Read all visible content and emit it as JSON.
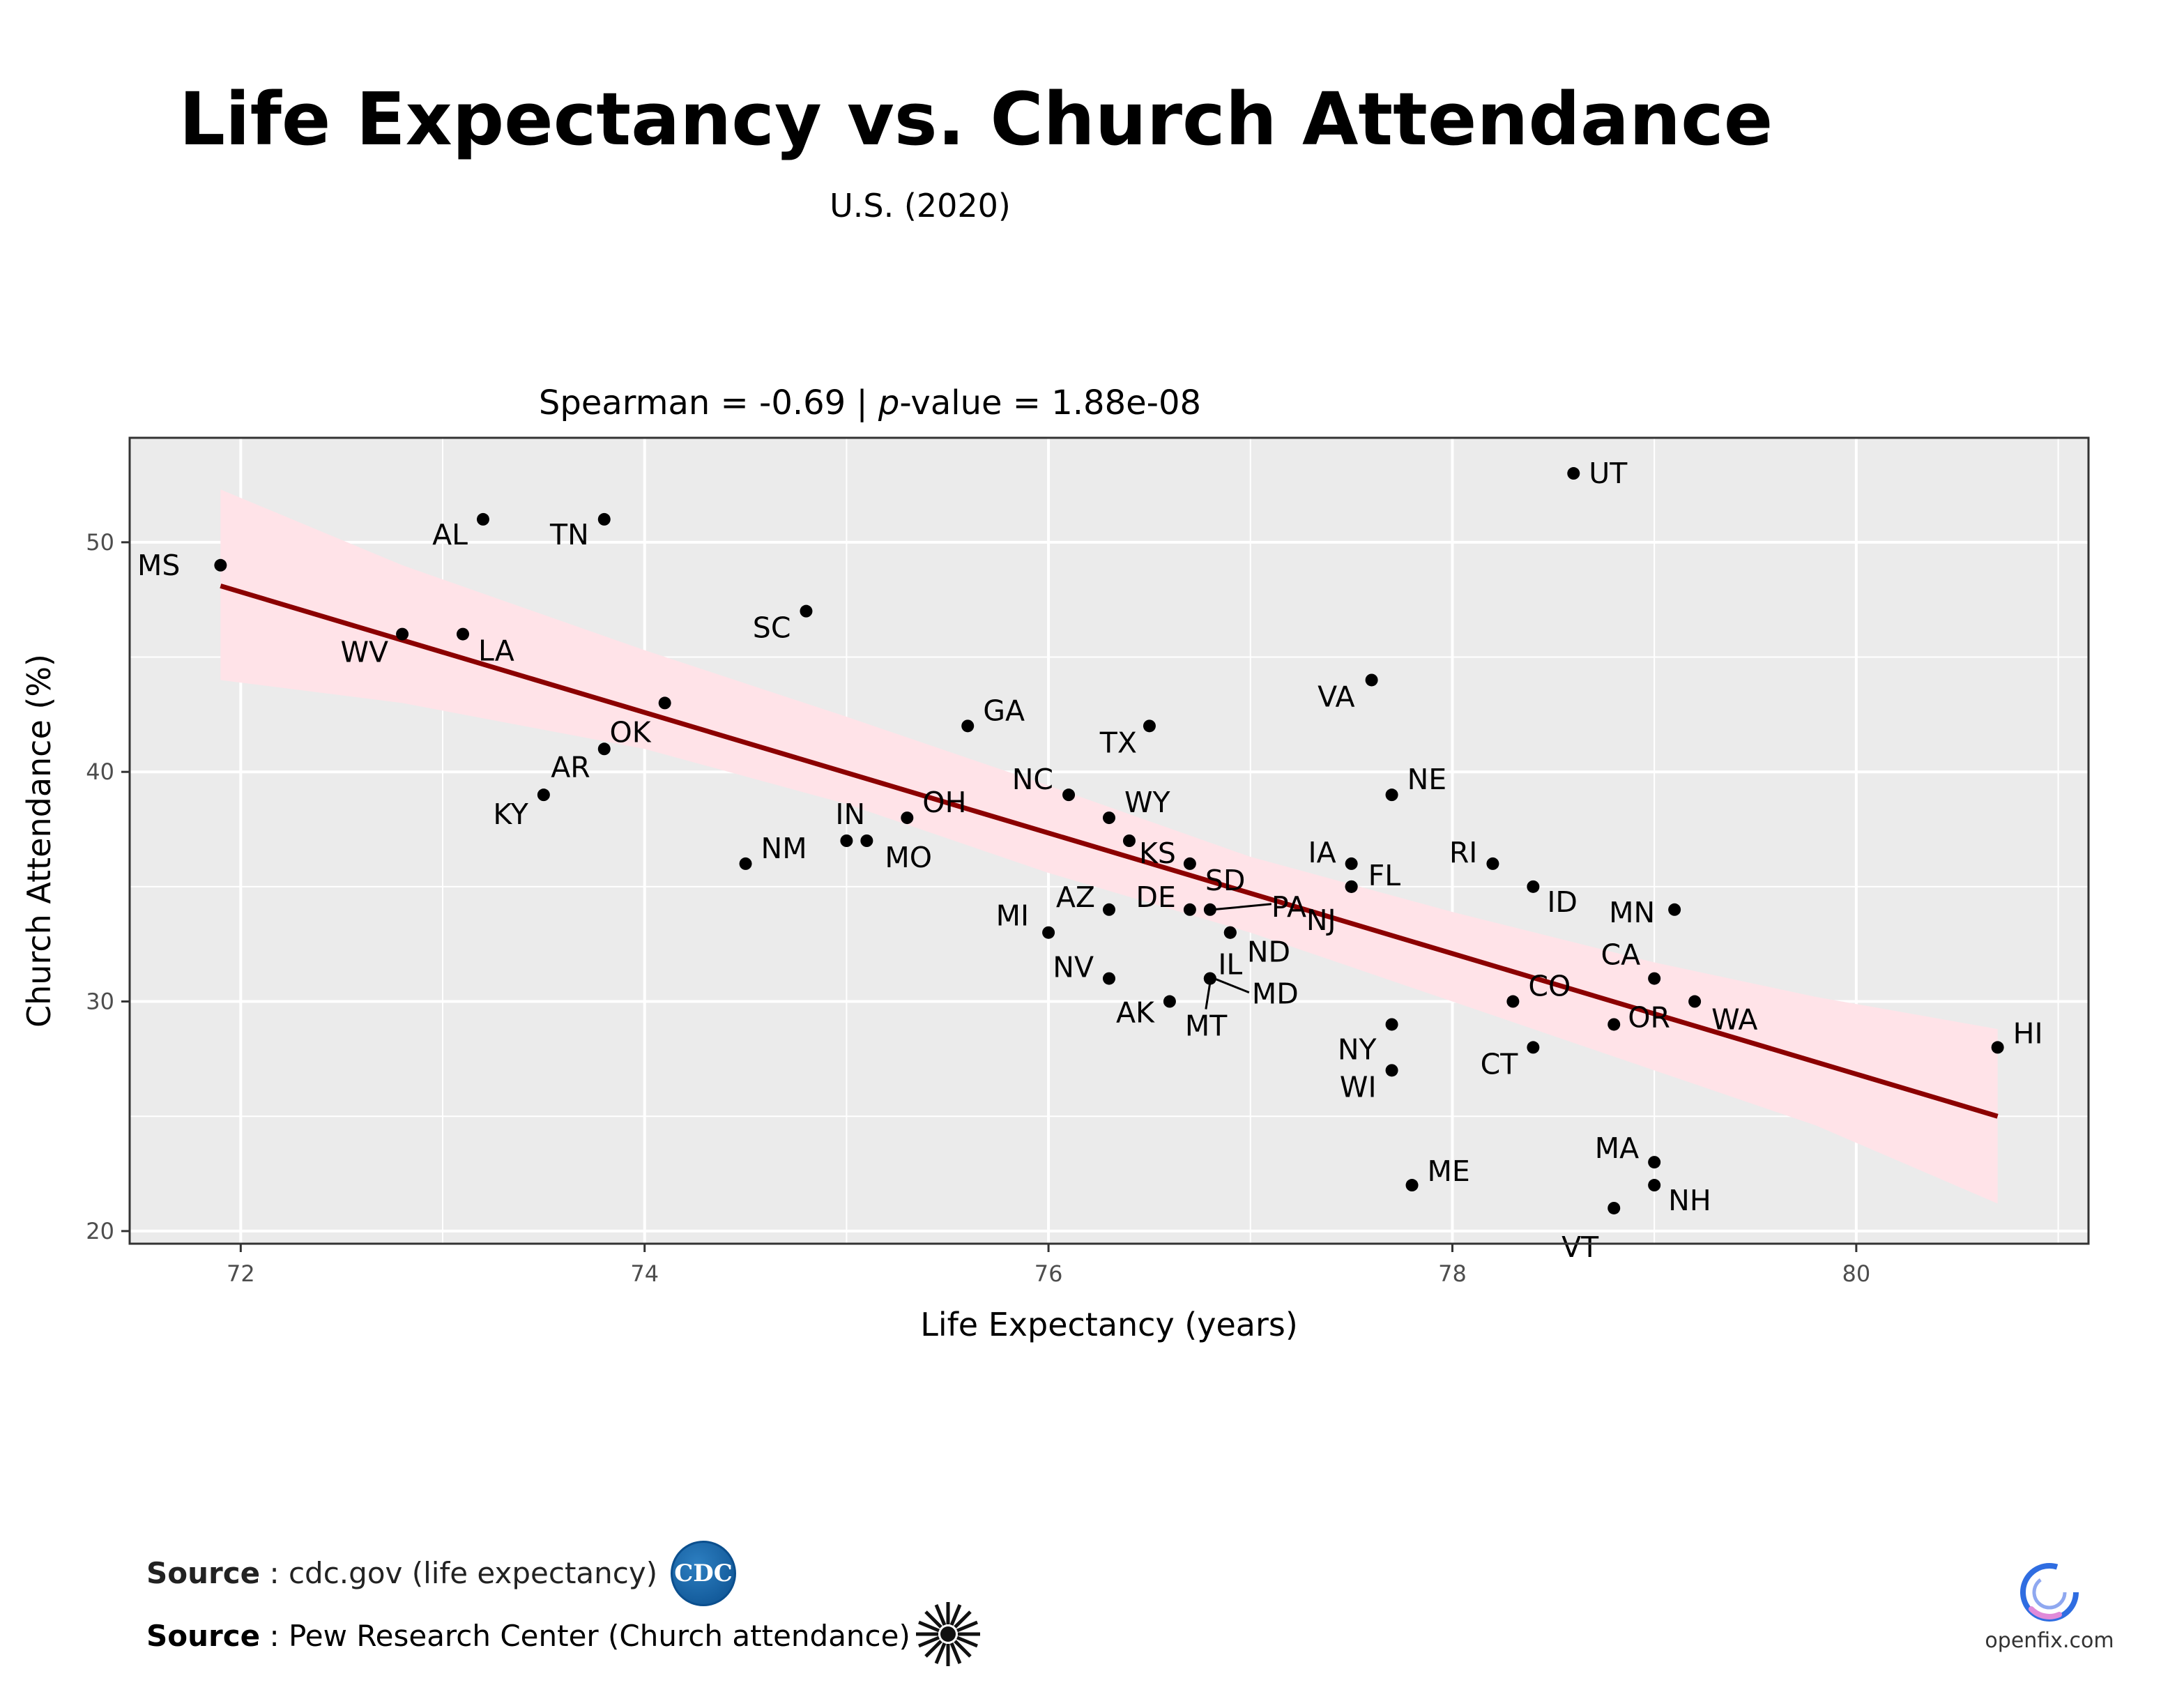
{
  "colors": {
    "panel": "#ebebeb",
    "grid": "#ffffff",
    "point": "#000000",
    "fit_line": "#8b0000",
    "confidence_band": "#ffe3e8",
    "cdc_blue": "#0b4f8e",
    "openfix_blue": "#2f6de1",
    "openfix_pink": "#e08ad9"
  },
  "sources": {
    "label": "Source",
    "cdc_text": " : cdc.gov (life expectancy)",
    "pew_text": " : Pew Research Center (Church attendance)",
    "cdc_logo_text": "CDC"
  },
  "branding": {
    "openfix_text": "openfix.com"
  },
  "chart_data": {
    "type": "scatter",
    "title": "Life Expectancy vs. Church Attendance",
    "subtitle": "U.S. (2020)",
    "stat": {
      "prefix": "Spearman = -0.69 | ",
      "p_symbol": "p",
      "suffix": "-value = 1.88e-08"
    },
    "xlabel": "Life Expectancy (years)",
    "ylabel": "Church Attendance (%)",
    "xlim": [
      71.45,
      81.15
    ],
    "ylim": [
      19.45,
      54.55
    ],
    "xticks": [
      72,
      74,
      76,
      78,
      80
    ],
    "yticks": [
      20,
      30,
      40,
      50
    ],
    "grid": true,
    "fit_line": {
      "x": [
        71.9,
        80.7
      ],
      "y": [
        48.1,
        25.0
      ]
    },
    "confidence_band": {
      "x": [
        71.9,
        72.8,
        74,
        75,
        76,
        77,
        78,
        79,
        79.8,
        80.7
      ],
      "upper": [
        52.3,
        49.0,
        45.3,
        42.4,
        39.4,
        36.3,
        33.9,
        31.7,
        30.2,
        28.8
      ],
      "lower": [
        44.0,
        43.0,
        41.0,
        38.6,
        35.6,
        33.0,
        30.0,
        27.0,
        24.6,
        21.2
      ]
    },
    "points": [
      {
        "label": "MS",
        "x": 71.9,
        "y": 49
      },
      {
        "label": "AL",
        "x": 73.2,
        "y": 51
      },
      {
        "label": "TN",
        "x": 73.8,
        "y": 51
      },
      {
        "label": "SC",
        "x": 74.8,
        "y": 47
      },
      {
        "label": "WV",
        "x": 72.8,
        "y": 46
      },
      {
        "label": "LA",
        "x": 73.1,
        "y": 46
      },
      {
        "label": "OK",
        "x": 74.1,
        "y": 43
      },
      {
        "label": "AR",
        "x": 73.8,
        "y": 41
      },
      {
        "label": "KY",
        "x": 73.5,
        "y": 39
      },
      {
        "label": "GA",
        "x": 75.6,
        "y": 42
      },
      {
        "label": "TX",
        "x": 76.5,
        "y": 42
      },
      {
        "label": "NM",
        "x": 74.5,
        "y": 36
      },
      {
        "label": "IN",
        "x": 75.0,
        "y": 37
      },
      {
        "label": "MO",
        "x": 75.1,
        "y": 37
      },
      {
        "label": "OH",
        "x": 75.3,
        "y": 38
      },
      {
        "label": "NC",
        "x": 76.1,
        "y": 39
      },
      {
        "label": "WY",
        "x": 76.3,
        "y": 38
      },
      {
        "label": "KS",
        "x": 76.4,
        "y": 37
      },
      {
        "label": "SD",
        "x": 76.7,
        "y": 36
      },
      {
        "label": "AZ",
        "x": 76.3,
        "y": 34
      },
      {
        "label": "DE",
        "x": 76.7,
        "y": 34
      },
      {
        "label": "PA",
        "x": 76.8,
        "y": 34
      },
      {
        "label": "MI",
        "x": 76.0,
        "y": 33
      },
      {
        "label": "IL",
        "x": 76.9,
        "y": 33
      },
      {
        "label": "ND",
        "x": 76.9,
        "y": 33
      },
      {
        "label": "NV",
        "x": 76.3,
        "y": 31
      },
      {
        "label": "MD",
        "x": 76.8,
        "y": 31
      },
      {
        "label": "MT",
        "x": 76.8,
        "y": 31
      },
      {
        "label": "AK",
        "x": 76.6,
        "y": 30
      },
      {
        "label": "UT",
        "x": 78.6,
        "y": 53
      },
      {
        "label": "VA",
        "x": 77.6,
        "y": 44
      },
      {
        "label": "NE",
        "x": 77.7,
        "y": 39
      },
      {
        "label": "IA",
        "x": 77.5,
        "y": 36
      },
      {
        "label": "FL",
        "x": 77.5,
        "y": 35
      },
      {
        "label": "NJ",
        "x": 77.5,
        "y": 35
      },
      {
        "label": "RI",
        "x": 78.2,
        "y": 36
      },
      {
        "label": "ID",
        "x": 78.4,
        "y": 35
      },
      {
        "label": "MN",
        "x": 79.1,
        "y": 34
      },
      {
        "label": "CA",
        "x": 79.0,
        "y": 31
      },
      {
        "label": "CO",
        "x": 78.3,
        "y": 30
      },
      {
        "label": "WA",
        "x": 79.2,
        "y": 30
      },
      {
        "label": "OR",
        "x": 78.8,
        "y": 29
      },
      {
        "label": "NY",
        "x": 77.7,
        "y": 29
      },
      {
        "label": "CT",
        "x": 78.4,
        "y": 28
      },
      {
        "label": "WI",
        "x": 77.7,
        "y": 27
      },
      {
        "label": "HI",
        "x": 80.7,
        "y": 28
      },
      {
        "label": "MA",
        "x": 79.0,
        "y": 23
      },
      {
        "label": "NH",
        "x": 79.0,
        "y": 22
      },
      {
        "label": "ME",
        "x": 77.8,
        "y": 22
      },
      {
        "label": "VT",
        "x": 78.8,
        "y": 21
      }
    ]
  }
}
